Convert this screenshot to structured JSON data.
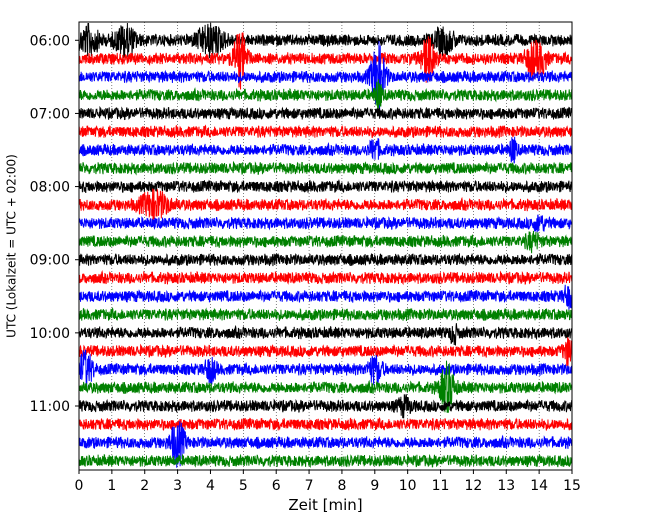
{
  "chart_data": {
    "type": "line",
    "title": "",
    "xlabel": "Zeit  [min]",
    "ylabel": "UTC (Lokalzeit = UTC + 02:00)",
    "xlim": [
      0,
      15
    ],
    "x_ticks": [
      0,
      1,
      2,
      3,
      4,
      5,
      6,
      7,
      8,
      9,
      10,
      11,
      12,
      13,
      14,
      15
    ],
    "y_tick_labels": [
      "06:00",
      "07:00",
      "08:00",
      "09:00",
      "10:00",
      "11:00"
    ],
    "traces_per_hour": 4,
    "minutes_per_trace": 15,
    "color_cycle": [
      "#000000",
      "#ff0000",
      "#0000ff",
      "#008000"
    ],
    "grid": "vertical dotted lines at each minute",
    "events": [
      {
        "trace": 0,
        "minute": 0.3,
        "amp": 1.4,
        "width": 0.3
      },
      {
        "trace": 0,
        "minute": 1.4,
        "amp": 1.5,
        "width": 0.3
      },
      {
        "trace": 0,
        "minute": 4.0,
        "amp": 1.5,
        "width": 0.4
      },
      {
        "trace": 0,
        "minute": 11.1,
        "amp": 1.2,
        "width": 0.3
      },
      {
        "trace": 1,
        "minute": 4.9,
        "amp": 2.8,
        "width": 0.2
      },
      {
        "trace": 1,
        "minute": 10.6,
        "amp": 2.2,
        "width": 0.2
      },
      {
        "trace": 1,
        "minute": 13.8,
        "amp": 1.6,
        "width": 0.2
      },
      {
        "trace": 1,
        "minute": 14.1,
        "amp": 1.2,
        "width": 0.15
      },
      {
        "trace": 2,
        "minute": 9.1,
        "amp": 3.5,
        "width": 0.2
      },
      {
        "trace": 3,
        "minute": 9.1,
        "amp": 1.5,
        "width": 0.1
      },
      {
        "trace": 6,
        "minute": 9.0,
        "amp": 1.0,
        "width": 0.15
      },
      {
        "trace": 6,
        "minute": 13.2,
        "amp": 1.2,
        "width": 0.1
      },
      {
        "trace": 9,
        "minute": 2.3,
        "amp": 1.3,
        "width": 0.4
      },
      {
        "trace": 10,
        "minute": 14.0,
        "amp": 0.6,
        "width": 0.2
      },
      {
        "trace": 11,
        "minute": 13.8,
        "amp": 0.7,
        "width": 0.2
      },
      {
        "trace": 14,
        "minute": 14.9,
        "amp": 1.0,
        "width": 0.15
      },
      {
        "trace": 16,
        "minute": 11.4,
        "amp": 1.0,
        "width": 0.1
      },
      {
        "trace": 17,
        "minute": 14.9,
        "amp": 1.3,
        "width": 0.15
      },
      {
        "trace": 18,
        "minute": 0.2,
        "amp": 1.8,
        "width": 0.2
      },
      {
        "trace": 18,
        "minute": 4.0,
        "amp": 1.2,
        "width": 0.15
      },
      {
        "trace": 18,
        "minute": 9.0,
        "amp": 1.3,
        "width": 0.2
      },
      {
        "trace": 19,
        "minute": 11.2,
        "amp": 2.5,
        "width": 0.2
      },
      {
        "trace": 20,
        "minute": 9.9,
        "amp": 0.8,
        "width": 0.2
      },
      {
        "trace": 22,
        "minute": 3.0,
        "amp": 2.2,
        "width": 0.2
      }
    ]
  }
}
